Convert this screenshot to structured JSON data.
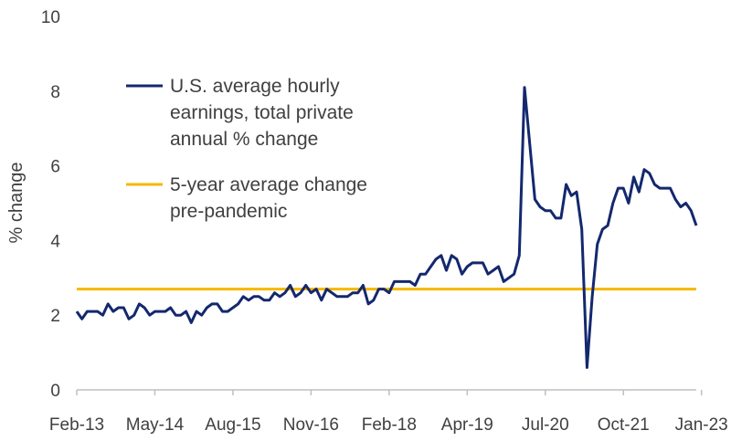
{
  "chart_data": {
    "type": "line",
    "ylabel": "% change",
    "ylim": [
      0,
      10
    ],
    "yticks": [
      0,
      2,
      4,
      6,
      8,
      10
    ],
    "xticks": [
      "Feb-13",
      "May-14",
      "Aug-15",
      "Nov-16",
      "Feb-18",
      "Apr-19",
      "Jul-20",
      "Oct-21",
      "Jan-23"
    ],
    "x_start": "Feb-13",
    "x_end": "Jan-23",
    "grid": false,
    "legend_position": "top-left",
    "series": [
      {
        "name": "U.S. average hourly earnings, total private annual % change",
        "legend_lines": [
          "U.S. average hourly",
          "earnings, total private",
          "annual % change"
        ],
        "color": "#14286e",
        "values": [
          2.1,
          1.9,
          2.1,
          2.1,
          2.1,
          2.0,
          2.3,
          2.1,
          2.2,
          2.2,
          1.9,
          2.0,
          2.3,
          2.2,
          2.0,
          2.1,
          2.1,
          2.1,
          2.2,
          2.0,
          2.0,
          2.1,
          1.8,
          2.1,
          2.0,
          2.2,
          2.3,
          2.3,
          2.1,
          2.1,
          2.2,
          2.3,
          2.5,
          2.4,
          2.5,
          2.5,
          2.4,
          2.4,
          2.6,
          2.5,
          2.6,
          2.8,
          2.5,
          2.6,
          2.8,
          2.6,
          2.7,
          2.4,
          2.7,
          2.6,
          2.5,
          2.5,
          2.5,
          2.6,
          2.6,
          2.8,
          2.3,
          2.4,
          2.7,
          2.7,
          2.6,
          2.9,
          2.9,
          2.9,
          2.9,
          2.8,
          3.1,
          3.1,
          3.3,
          3.5,
          3.6,
          3.2,
          3.6,
          3.5,
          3.1,
          3.3,
          3.4,
          3.4,
          3.4,
          3.1,
          3.2,
          3.3,
          2.9,
          3.0,
          3.1,
          3.6,
          8.1,
          6.6,
          5.1,
          4.9,
          4.8,
          4.8,
          4.6,
          4.6,
          5.5,
          5.2,
          5.3,
          4.3,
          0.6,
          2.5,
          3.9,
          4.3,
          4.4,
          5.0,
          5.4,
          5.4,
          5.0,
          5.7,
          5.3,
          5.9,
          5.8,
          5.5,
          5.4,
          5.4,
          5.4,
          5.1,
          4.9,
          5.0,
          4.8,
          4.4
        ]
      },
      {
        "name": "5-year average change pre-pandemic",
        "legend_lines": [
          "5-year average change",
          "pre-pandemic"
        ],
        "color": "#f5b800",
        "values": [
          2.7,
          2.7
        ]
      }
    ]
  }
}
